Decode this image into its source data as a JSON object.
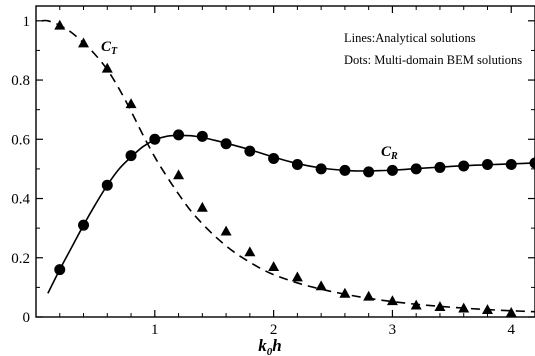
{
  "chart_data": {
    "type": "line",
    "title": "",
    "xlabel": "k",
    "xlabel_subscript": "0",
    "xlabel_suffix": "h",
    "ylabel": "",
    "xlim": [
      0,
      4.2
    ],
    "ylim": [
      0,
      1.05
    ],
    "x_ticks": [
      1,
      2,
      3,
      4
    ],
    "y_ticks": [
      0,
      0.2,
      0.4,
      0.6,
      0.8,
      1
    ],
    "grid": false,
    "annotations": [
      "Lines:Analytical solutions",
      "Dots: Multi-domain BEM solutions"
    ],
    "series": [
      {
        "name": "C",
        "name_subscript": "T",
        "style": "dashed",
        "marker": "triangle",
        "line_x": [
          0.05,
          0.1,
          0.2,
          0.3,
          0.4,
          0.5,
          0.6,
          0.7,
          0.8,
          0.9,
          1.0,
          1.1,
          1.2,
          1.3,
          1.4,
          1.5,
          1.6,
          1.7,
          1.8,
          1.9,
          2.0,
          2.2,
          2.4,
          2.6,
          2.8,
          3.0,
          3.2,
          3.4,
          3.6,
          3.8,
          4.0,
          4.2
        ],
        "line_y": [
          1.0,
          1.0,
          0.985,
          0.96,
          0.925,
          0.885,
          0.835,
          0.77,
          0.695,
          0.615,
          0.54,
          0.475,
          0.415,
          0.36,
          0.315,
          0.275,
          0.24,
          0.21,
          0.185,
          0.162,
          0.143,
          0.115,
          0.094,
          0.077,
          0.063,
          0.052,
          0.043,
          0.036,
          0.03,
          0.025,
          0.021,
          0.018
        ],
        "point_x": [
          0.2,
          0.4,
          0.6,
          0.8,
          1.2,
          1.4,
          1.6,
          1.8,
          2.0,
          2.2,
          2.4,
          2.6,
          2.8,
          3.0,
          3.2,
          3.4,
          3.6,
          3.8,
          4.0
        ],
        "point_y": [
          0.985,
          0.925,
          0.84,
          0.72,
          0.48,
          0.37,
          0.29,
          0.22,
          0.17,
          0.135,
          0.105,
          0.08,
          0.07,
          0.055,
          0.04,
          0.035,
          0.03,
          0.025,
          0.015
        ]
      },
      {
        "name": "C",
        "name_subscript": "R",
        "style": "solid",
        "marker": "circle",
        "line_x": [
          0.1,
          0.2,
          0.3,
          0.4,
          0.5,
          0.6,
          0.7,
          0.8,
          0.9,
          1.0,
          1.1,
          1.2,
          1.3,
          1.4,
          1.5,
          1.6,
          1.8,
          2.0,
          2.2,
          2.4,
          2.6,
          2.8,
          3.0,
          3.2,
          3.4,
          3.6,
          3.8,
          4.0,
          4.2
        ],
        "line_y": [
          0.08,
          0.16,
          0.235,
          0.31,
          0.38,
          0.445,
          0.5,
          0.54,
          0.575,
          0.598,
          0.61,
          0.613,
          0.612,
          0.606,
          0.597,
          0.587,
          0.565,
          0.54,
          0.518,
          0.503,
          0.495,
          0.493,
          0.496,
          0.501,
          0.506,
          0.511,
          0.514,
          0.517,
          0.52
        ],
        "point_x": [
          0.2,
          0.4,
          0.6,
          0.8,
          1.0,
          1.2,
          1.4,
          1.6,
          1.8,
          2.0,
          2.2,
          2.4,
          2.6,
          2.8,
          3.0,
          3.2,
          3.4,
          3.6,
          3.8,
          4.0,
          4.2
        ],
        "point_y": [
          0.16,
          0.31,
          0.445,
          0.545,
          0.6,
          0.615,
          0.61,
          0.585,
          0.56,
          0.535,
          0.515,
          0.5,
          0.495,
          0.49,
          0.495,
          0.5,
          0.505,
          0.51,
          0.515,
          0.515,
          0.52
        ]
      }
    ]
  }
}
